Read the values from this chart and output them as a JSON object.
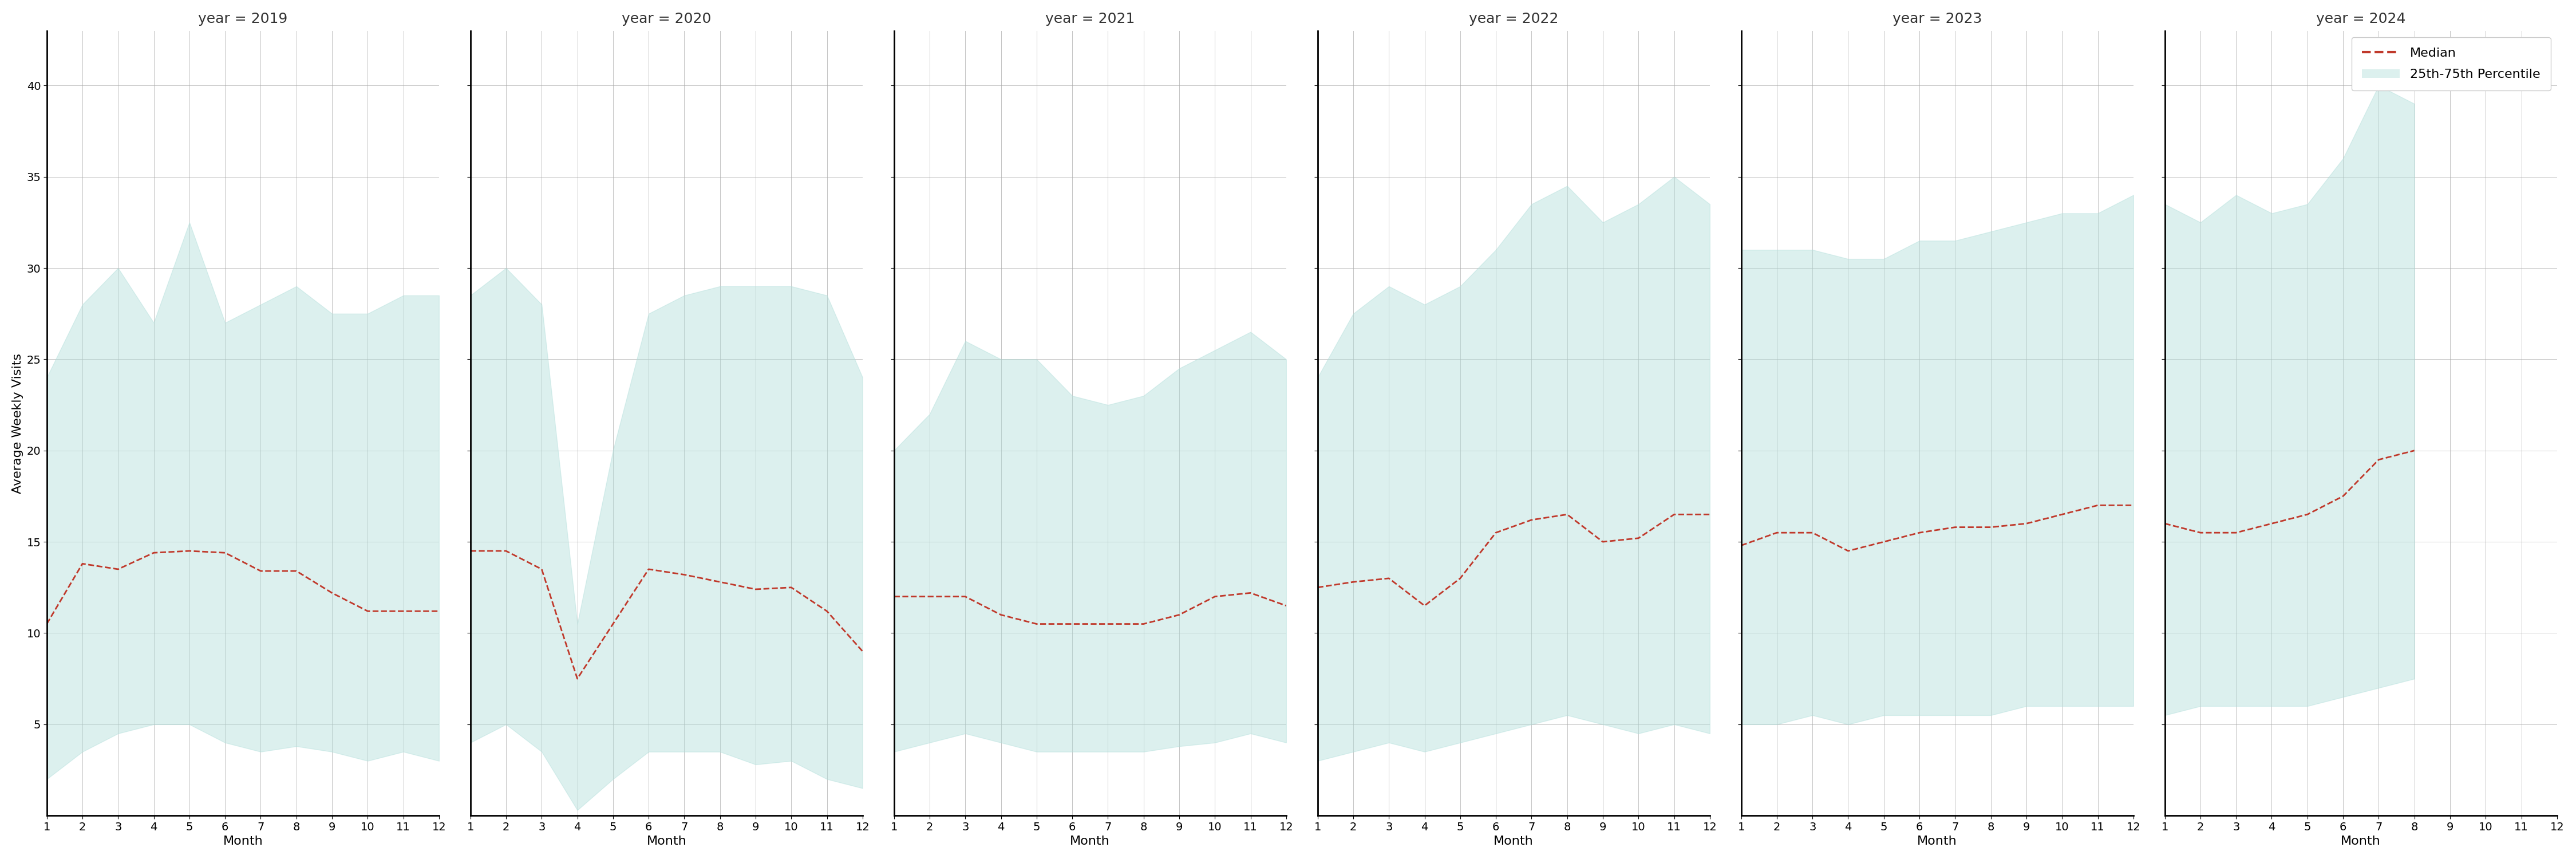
{
  "years": [
    2019,
    2020,
    2021,
    2022,
    2023,
    2024
  ],
  "months": [
    1,
    2,
    3,
    4,
    5,
    6,
    7,
    8,
    9,
    10,
    11,
    12
  ],
  "median": {
    "2019": [
      10.5,
      13.8,
      13.5,
      14.4,
      14.5,
      14.4,
      13.4,
      13.4,
      12.2,
      11.2,
      11.2,
      11.2
    ],
    "2020": [
      14.5,
      14.5,
      13.5,
      7.5,
      10.5,
      13.5,
      13.2,
      12.8,
      12.4,
      12.5,
      11.2,
      9.0
    ],
    "2021": [
      12.0,
      12.0,
      12.0,
      11.0,
      10.5,
      10.5,
      10.5,
      10.5,
      11.0,
      12.0,
      12.2,
      11.5
    ],
    "2022": [
      12.5,
      12.8,
      13.0,
      11.5,
      13.0,
      15.5,
      16.2,
      16.5,
      15.0,
      15.2,
      16.5,
      16.5
    ],
    "2023": [
      14.8,
      15.5,
      15.5,
      14.5,
      15.0,
      15.5,
      15.8,
      15.8,
      16.0,
      16.5,
      17.0,
      17.0
    ],
    "2024": [
      16.0,
      15.5,
      15.5,
      16.0,
      16.5,
      17.5,
      19.5,
      20.0,
      null,
      null,
      null,
      null
    ]
  },
  "p25": {
    "2019": [
      2.0,
      3.5,
      4.5,
      5.0,
      5.0,
      4.0,
      3.5,
      3.8,
      3.5,
      3.0,
      3.5,
      3.0
    ],
    "2020": [
      4.0,
      5.0,
      3.5,
      0.3,
      2.0,
      3.5,
      3.5,
      3.5,
      2.8,
      3.0,
      2.0,
      1.5
    ],
    "2021": [
      3.5,
      4.0,
      4.5,
      4.0,
      3.5,
      3.5,
      3.5,
      3.5,
      3.8,
      4.0,
      4.5,
      4.0
    ],
    "2022": [
      3.0,
      3.5,
      4.0,
      3.5,
      4.0,
      4.5,
      5.0,
      5.5,
      5.0,
      4.5,
      5.0,
      4.5
    ],
    "2023": [
      5.0,
      5.0,
      5.5,
      5.0,
      5.5,
      5.5,
      5.5,
      5.5,
      6.0,
      6.0,
      6.0,
      6.0
    ],
    "2024": [
      5.5,
      6.0,
      6.0,
      6.0,
      6.0,
      6.5,
      7.0,
      7.5,
      null,
      null,
      null,
      null
    ]
  },
  "p75": {
    "2019": [
      24.0,
      28.0,
      30.0,
      27.0,
      32.5,
      27.0,
      28.0,
      29.0,
      27.5,
      27.5,
      28.5,
      28.5
    ],
    "2020": [
      28.5,
      30.0,
      28.0,
      10.5,
      20.0,
      27.5,
      28.5,
      29.0,
      29.0,
      29.0,
      28.5,
      24.0
    ],
    "2021": [
      20.0,
      22.0,
      26.0,
      25.0,
      25.0,
      23.0,
      22.5,
      23.0,
      24.5,
      25.5,
      26.5,
      25.0
    ],
    "2022": [
      24.0,
      27.5,
      29.0,
      28.0,
      29.0,
      31.0,
      33.5,
      34.5,
      32.5,
      33.5,
      35.0,
      33.5
    ],
    "2023": [
      31.0,
      31.0,
      31.0,
      30.5,
      30.5,
      31.5,
      31.5,
      32.0,
      32.5,
      33.0,
      33.0,
      34.0
    ],
    "2024": [
      33.5,
      32.5,
      34.0,
      33.0,
      33.5,
      36.0,
      40.0,
      39.0,
      null,
      null,
      null,
      null
    ]
  },
  "fill_color": "#b2dfdb",
  "fill_alpha": 0.45,
  "line_color": "#c0392b",
  "line_style": "--",
  "line_width": 2.0,
  "grid_color": "#aaaaaa",
  "background_color": "#ffffff",
  "ylabel": "Average Weekly Visits",
  "xlabel": "Month",
  "ylim": [
    0,
    43
  ],
  "yticks": [
    5,
    10,
    15,
    20,
    25,
    30,
    35,
    40
  ],
  "xticks": [
    1,
    2,
    3,
    4,
    5,
    6,
    7,
    8,
    9,
    10,
    11,
    12
  ],
  "title_fontsize": 18,
  "label_fontsize": 16,
  "tick_fontsize": 14,
  "legend_fontsize": 16
}
